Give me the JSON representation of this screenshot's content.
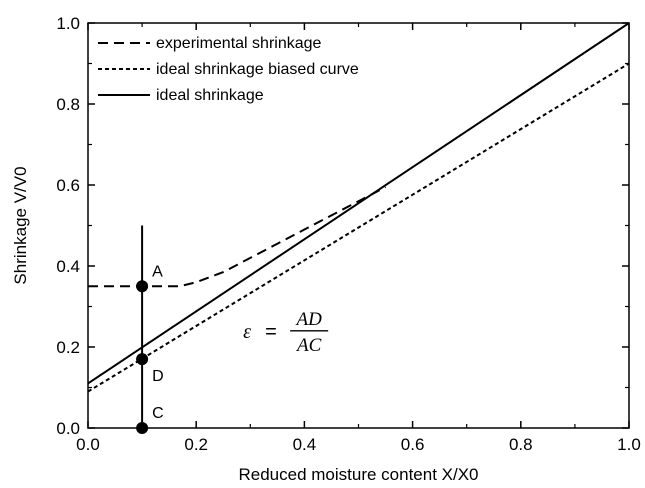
{
  "chart_data": {
    "type": "line",
    "title": "",
    "xlabel": "Reduced moisture content X/X0",
    "ylabel": "Shrinkage V/V0",
    "xlim": [
      0.0,
      1.0
    ],
    "ylim": [
      0.0,
      1.0
    ],
    "xticks": [
      "0.0",
      "0.2",
      "0.4",
      "0.6",
      "0.8",
      "1.0"
    ],
    "yticks": [
      "0.0",
      "0.2",
      "0.4",
      "0.6",
      "0.8",
      "1.0"
    ],
    "grid": false,
    "legend_position": "top-left",
    "series": [
      {
        "name": "experimental shrinkage",
        "style": "dashed",
        "x": [
          0.0,
          0.1,
          0.17,
          0.2,
          0.25,
          0.3,
          0.35,
          0.4,
          0.45,
          0.5,
          0.55
        ],
        "y": [
          0.35,
          0.35,
          0.35,
          0.36,
          0.385,
          0.42,
          0.455,
          0.49,
          0.525,
          0.56,
          0.595
        ]
      },
      {
        "name": "ideal shrinkage biased curve",
        "style": "dotted",
        "x": [
          0.0,
          1.0
        ],
        "y": [
          0.09,
          0.9
        ]
      },
      {
        "name": "ideal shrinkage",
        "style": "solid",
        "x": [
          0.0,
          1.0
        ],
        "y": [
          0.11,
          1.0
        ]
      }
    ],
    "vertical_line": {
      "x": 0.1,
      "y": [
        0.0,
        0.5
      ]
    },
    "points": [
      {
        "label": "A",
        "x": 0.1,
        "y": 0.35
      },
      {
        "label": "D",
        "x": 0.1,
        "y": 0.17
      },
      {
        "label": "C",
        "x": 0.1,
        "y": 0.0
      }
    ],
    "equation": {
      "lhs": "ε",
      "equals": "=",
      "numerator": "AD",
      "denominator": "AC",
      "x": 0.37,
      "y": 0.24
    }
  }
}
